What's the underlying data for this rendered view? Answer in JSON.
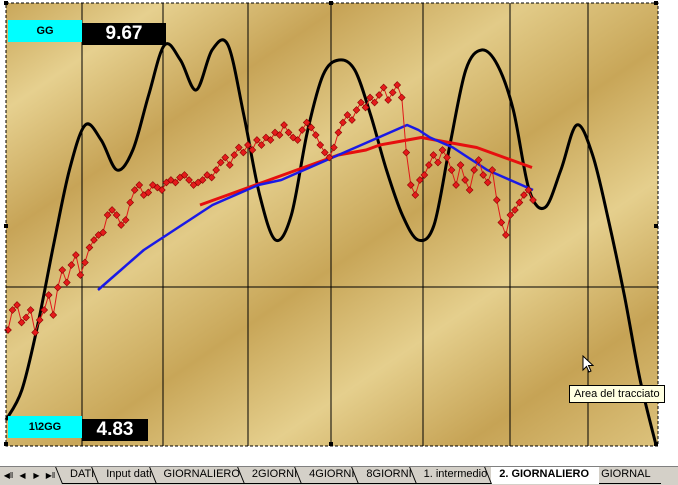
{
  "gg": {
    "label": "GG",
    "value": "9.67"
  },
  "half_gg": {
    "label": "1\\2GG",
    "value": "4.83"
  },
  "tooltip": {
    "text": "Area del tracciato"
  },
  "nav_icons": [
    "first-sheet-icon",
    "prev-sheet-icon",
    "next-sheet-icon",
    "last-sheet-icon"
  ],
  "tabs": [
    {
      "label": "DATI",
      "active": false
    },
    {
      "label": "Input dati",
      "active": false
    },
    {
      "label": "GIORNALIERO",
      "active": false
    },
    {
      "label": "2GIORNI",
      "active": false
    },
    {
      "label": "4GIORNI",
      "active": false
    },
    {
      "label": "8GIORNI",
      "active": false
    },
    {
      "label": "1. intermedio",
      "active": false
    },
    {
      "label": "2. GIORNALIERO",
      "active": true
    },
    {
      "label": "GIORNAL",
      "active": false
    }
  ],
  "colors": {
    "background_gold": "#d7bb6e",
    "price": "#e01818",
    "blue_ma": "#1a1ae6",
    "red_ma": "#e60f0f",
    "black_curve": "#000000",
    "label_box": "#00ffff"
  },
  "chart_data": {
    "type": "line",
    "title": "",
    "xlabel": "",
    "ylabel": "",
    "grid": true,
    "series": [
      {
        "color": "#e01818",
        "markers": "diamond",
        "values": [
          0.36,
          0.44,
          0.46,
          0.39,
          0.41,
          0.44,
          0.35,
          0.4,
          0.44,
          0.5,
          0.42,
          0.53,
          0.6,
          0.55,
          0.62,
          0.66,
          0.58,
          0.63,
          0.69,
          0.72,
          0.74,
          0.75,
          0.82,
          0.84,
          0.82,
          0.78,
          0.8,
          0.87,
          0.92,
          0.94,
          0.9,
          0.91,
          0.94,
          0.93,
          0.92,
          0.95,
          0.96,
          0.95,
          0.97,
          0.98,
          0.96,
          0.94,
          0.95,
          0.96,
          0.98,
          0.97,
          1.0,
          1.03,
          1.05,
          1.02,
          1.06,
          1.09,
          1.07,
          1.1,
          1.08,
          1.12,
          1.1,
          1.13,
          1.12,
          1.15,
          1.14,
          1.18,
          1.15,
          1.13,
          1.12,
          1.16,
          1.19,
          1.17,
          1.14,
          1.1,
          1.07,
          1.05,
          1.09,
          1.15,
          1.19,
          1.22,
          1.2,
          1.24,
          1.27,
          1.25,
          1.29,
          1.27,
          1.3,
          1.33,
          1.28,
          1.31,
          1.34,
          1.29,
          1.07,
          0.94,
          0.9,
          0.96,
          0.98,
          1.02,
          1.06,
          1.03,
          1.08,
          1.05,
          1.0,
          0.94,
          1.02,
          0.96,
          0.92,
          1.0,
          1.04,
          0.98,
          0.95,
          1.0,
          0.88,
          0.79,
          0.74,
          0.82,
          0.84,
          0.87,
          0.9,
          0.92,
          0.88
        ]
      },
      {
        "color": "#1a1ae6",
        "values": [
          0.52,
          0.56,
          0.6,
          0.64,
          0.68,
          0.71,
          0.74,
          0.77,
          0.8,
          0.83,
          0.86,
          0.88,
          0.9,
          0.92,
          0.94,
          0.95,
          0.96,
          0.98,
          1.0,
          1.02,
          1.04,
          1.06,
          1.08,
          1.1,
          1.12,
          1.14,
          1.16,
          1.18,
          1.16,
          1.13,
          1.11,
          1.09,
          1.06,
          1.03,
          1.0,
          0.98,
          0.96,
          0.94,
          0.92
        ]
      },
      {
        "color": "#e60f0f",
        "values": [
          0.86,
          0.88,
          0.9,
          0.92,
          0.94,
          0.96,
          0.98,
          1.0,
          1.02,
          1.04,
          1.06,
          1.07,
          1.08,
          1.1,
          1.11,
          1.12,
          1.13,
          1.12,
          1.11,
          1.1,
          1.09,
          1.07,
          1.05,
          1.03,
          1.01
        ]
      },
      {
        "color": "#000000",
        "values": [
          0.0,
          0.12,
          0.38,
          0.7,
          1.0,
          1.18,
          1.12,
          1.0,
          1.08,
          1.3,
          1.5,
          1.44,
          1.32,
          1.48,
          1.5,
          1.22,
          0.9,
          0.72,
          0.82,
          1.15,
          1.38,
          1.44,
          1.4,
          1.22,
          1.0,
          0.82,
          0.72,
          0.78,
          1.1,
          1.4,
          1.48,
          1.42,
          1.24,
          0.92,
          0.85,
          1.0,
          1.18,
          1.06,
          0.8,
          0.5,
          0.16,
          -0.1
        ]
      }
    ]
  }
}
